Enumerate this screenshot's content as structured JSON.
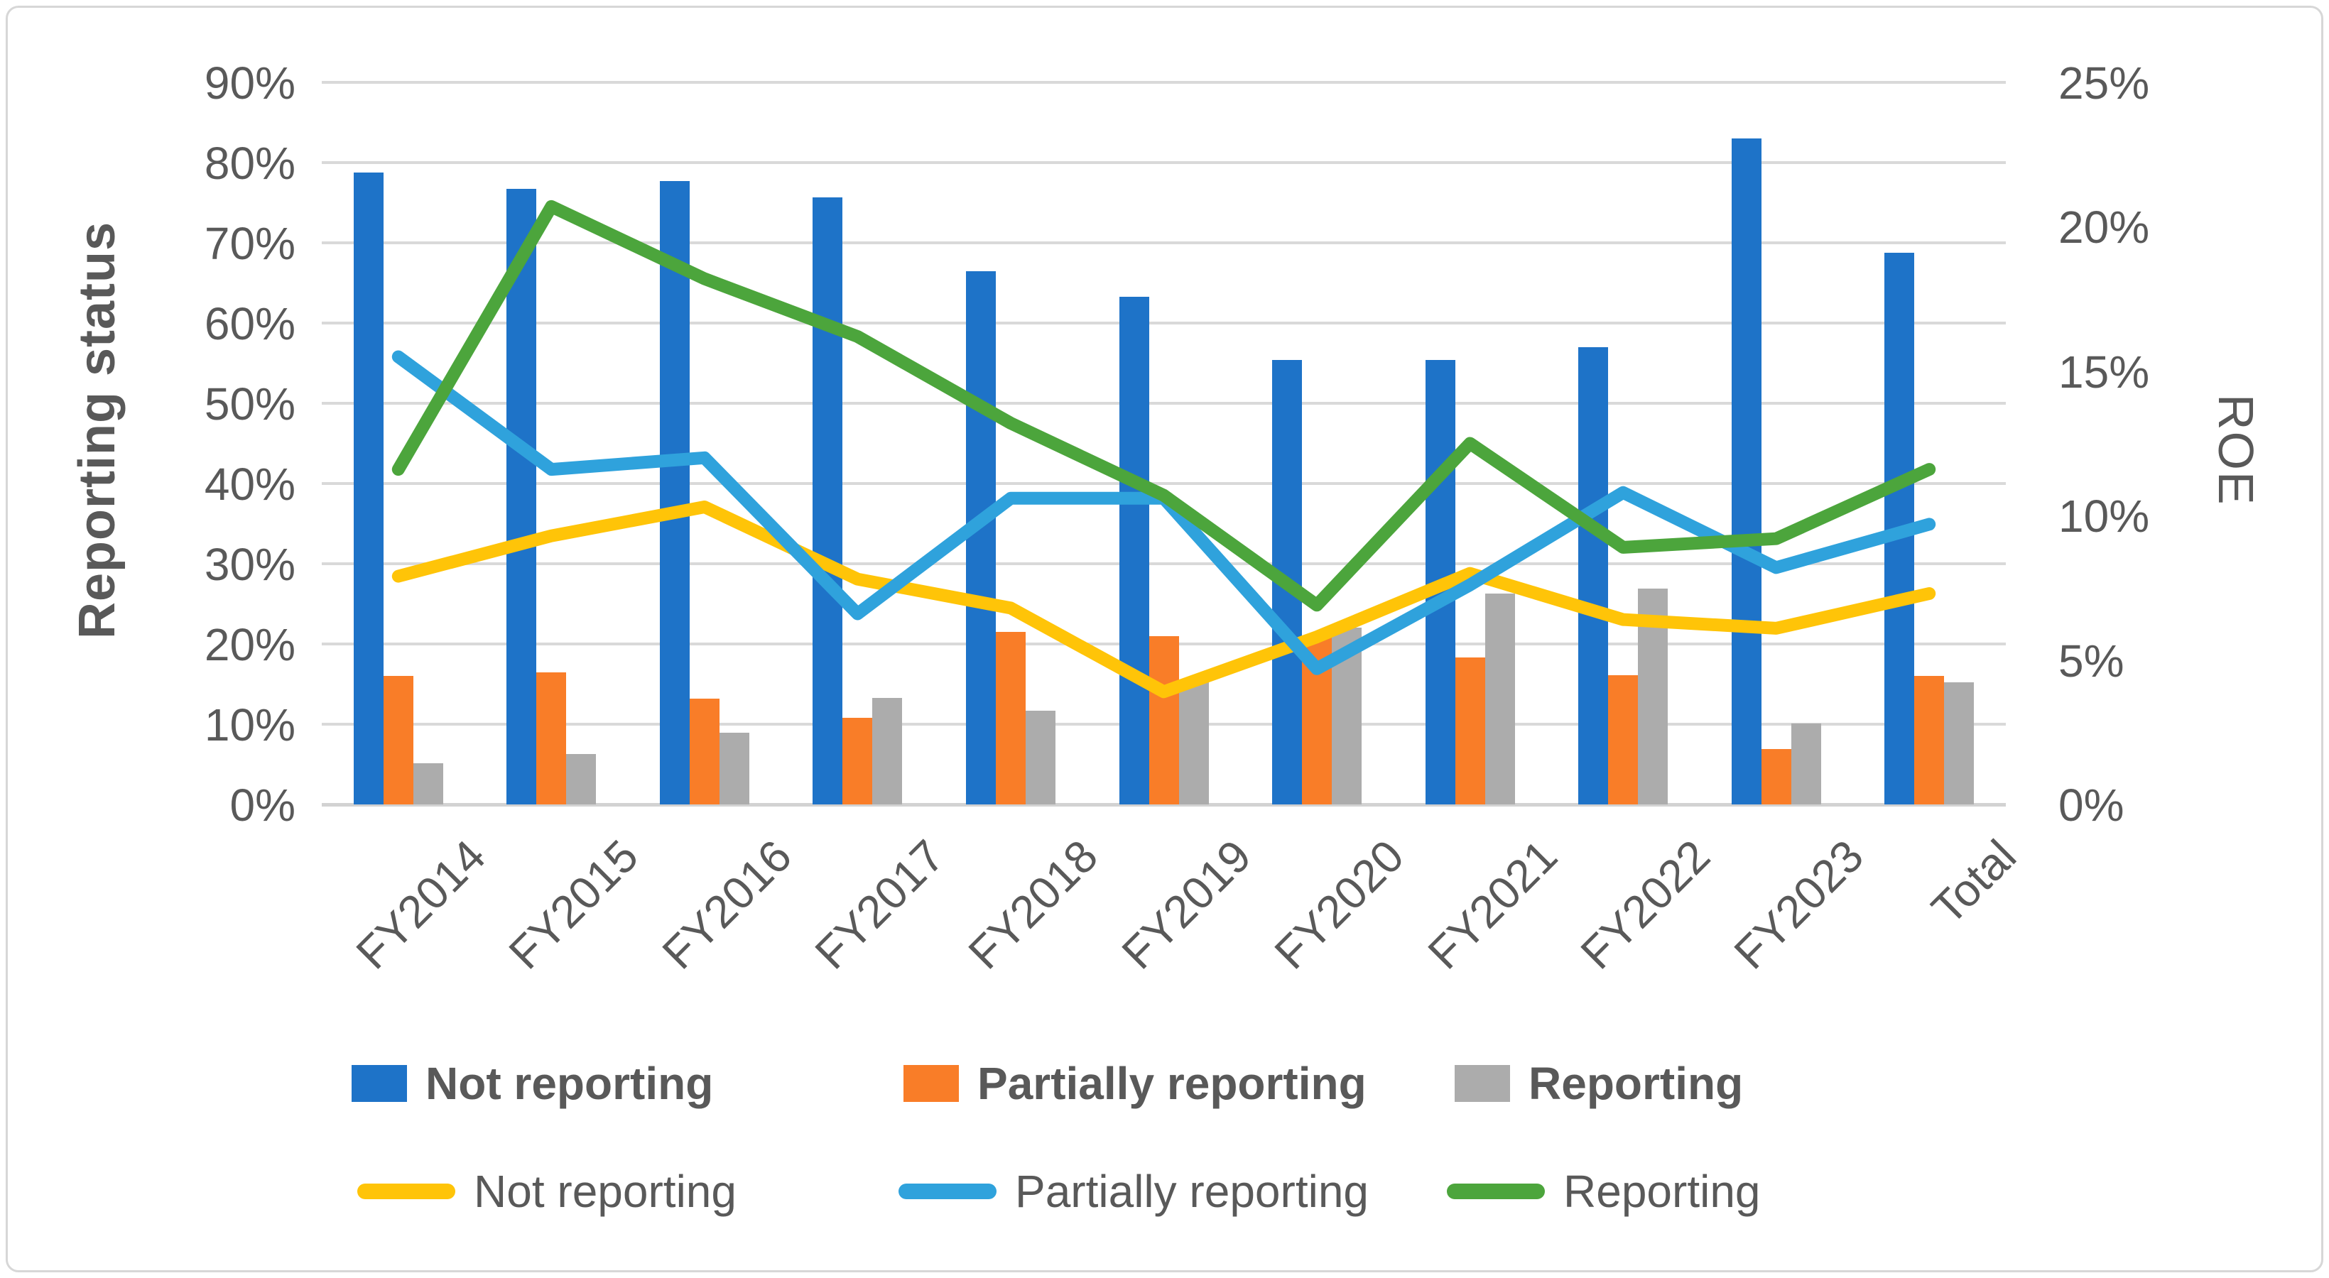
{
  "chart_data": {
    "type": "bar+line",
    "categories": [
      "FY2014",
      "FY2015",
      "FY2016",
      "FY2017",
      "FY2018",
      "FY2019",
      "FY2020",
      "FY2021",
      "FY2022",
      "FY2023",
      "Total"
    ],
    "bar_series": [
      {
        "name": "Not reporting",
        "color": "#1e73c8",
        "axis": "left",
        "values": [
          78.8,
          76.7,
          77.7,
          75.7,
          66.5,
          63.3,
          55.4,
          55.4,
          57.0,
          83.0,
          68.8
        ]
      },
      {
        "name": "Partially reporting",
        "color": "#f97d28",
        "axis": "left",
        "values": [
          16.0,
          16.5,
          13.2,
          10.8,
          21.5,
          21.0,
          21.0,
          18.3,
          16.1,
          6.9,
          16.0
        ]
      },
      {
        "name": "Reporting",
        "color": "#acacac",
        "axis": "left",
        "values": [
          5.1,
          6.3,
          8.9,
          13.3,
          11.7,
          15.5,
          22.0,
          26.3,
          26.9,
          10.1,
          15.2
        ]
      }
    ],
    "line_series": [
      {
        "name": "Not reporting",
        "color": "#ffc408",
        "axis": "right",
        "values": [
          7.9,
          9.3,
          10.3,
          7.8,
          6.8,
          3.9,
          5.8,
          8.0,
          6.4,
          6.1,
          7.3
        ]
      },
      {
        "name": "Partially reporting",
        "color": "#2fa2dc",
        "axis": "right",
        "values": [
          15.5,
          11.6,
          12.0,
          6.6,
          10.6,
          10.6,
          4.7,
          7.6,
          10.8,
          8.2,
          9.7
        ]
      },
      {
        "name": "Reporting",
        "color": "#4ca53c",
        "axis": "right",
        "values": [
          11.6,
          20.7,
          18.2,
          16.2,
          13.2,
          10.7,
          6.9,
          12.5,
          8.9,
          9.2,
          11.6
        ]
      }
    ],
    "left_axis": {
      "title": "Reporting status",
      "min": 0,
      "max": 90,
      "step": 10,
      "tick_suffix": "%"
    },
    "right_axis": {
      "title": "ROE",
      "min": 0,
      "max": 25,
      "step": 5,
      "tick_suffix": "%"
    },
    "grid": true,
    "legend_position": "bottom"
  }
}
